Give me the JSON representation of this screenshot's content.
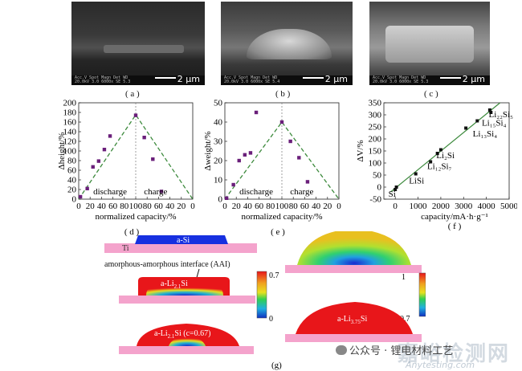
{
  "sem_panels": [
    {
      "caption": "( a )",
      "scale_label": "2 μm",
      "info_line1": "Acc.V  Spot Magn   Det  WD",
      "info_line2": "20.0kV 3.0  6000x  SE  5.3"
    },
    {
      "caption": "( b )",
      "scale_label": "2 μm",
      "info_line1": "Acc.V  Spot Magn   Det  WD",
      "info_line2": "20.0kV 3.0  6000x  SE  5.4"
    },
    {
      "caption": "( c )",
      "scale_label": "2 μm",
      "info_line1": "Acc.V  Spot Magn   Det  WD",
      "info_line2": "20.0kV 3.0  6000x  SE  5.3"
    }
  ],
  "chart_data": [
    {
      "type": "scatter",
      "caption": "( d )",
      "ylabel": "Δheight/%",
      "xlabel": "normalized capacity/%",
      "x_ticks": [
        "0",
        "20",
        "40",
        "60",
        "80",
        "100",
        "80",
        "60",
        "40",
        "20",
        "0"
      ],
      "y_ticks": [
        "0",
        "20",
        "40",
        "60",
        "80",
        "100",
        "120",
        "140",
        "160",
        "180",
        "200"
      ],
      "ylim": [
        0,
        200
      ],
      "annotations": [
        "discharge",
        "charge"
      ],
      "points": [
        [
          3,
          5
        ],
        [
          15,
          22
        ],
        [
          25,
          67
        ],
        [
          35,
          79
        ],
        [
          45,
          103
        ],
        [
          55,
          131
        ],
        [
          100,
          174
        ],
        [
          115,
          128
        ],
        [
          130,
          83
        ],
        [
          145,
          16
        ]
      ],
      "trend": [
        [
          0,
          0
        ],
        [
          100,
          175
        ],
        [
          200,
          0
        ]
      ]
    },
    {
      "type": "scatter",
      "caption": "( e )",
      "ylabel": "Δweight/%",
      "xlabel": "normalized capacity/%",
      "x_ticks": [
        "0",
        "20",
        "40",
        "60",
        "80",
        "100",
        "80",
        "60",
        "40",
        "20",
        "0"
      ],
      "y_ticks": [
        "0",
        "10",
        "20",
        "30",
        "40",
        "50"
      ],
      "ylim": [
        0,
        50
      ],
      "annotations": [
        "discharge",
        "charge"
      ],
      "points": [
        [
          3,
          0.5
        ],
        [
          15,
          7.5
        ],
        [
          25,
          20
        ],
        [
          35,
          23
        ],
        [
          45,
          24
        ],
        [
          55,
          45
        ],
        [
          100,
          40
        ],
        [
          115,
          30
        ],
        [
          130,
          21.5
        ],
        [
          145,
          9
        ]
      ],
      "trend": [
        [
          0,
          0
        ],
        [
          100,
          40
        ],
        [
          200,
          0
        ]
      ]
    },
    {
      "type": "scatter",
      "caption": "( f )",
      "ylabel": "ΔV/%",
      "xlabel": "capacity/mA·h·g⁻¹",
      "x_ticks": [
        "0",
        "1000",
        "2000",
        "3000",
        "4000",
        "5000"
      ],
      "y_ticks": [
        "-50",
        "0",
        "50",
        "100",
        "150",
        "200",
        "250",
        "300",
        "350"
      ],
      "xlim": [
        -500,
        5000
      ],
      "ylim": [
        -50,
        350
      ],
      "points": [
        [
          0,
          -10
        ],
        [
          50,
          0
        ],
        [
          900,
          55
        ],
        [
          1550,
          105
        ],
        [
          1850,
          140
        ],
        [
          2000,
          155
        ],
        [
          3100,
          245
        ],
        [
          3600,
          275
        ],
        [
          4200,
          310
        ],
        [
          4150,
          320
        ]
      ],
      "trend": [
        [
          -200,
          -20
        ],
        [
          4600,
          350
        ]
      ],
      "labels": [
        {
          "text": "Si",
          "x": -300,
          "y": -40
        },
        {
          "text": "LiSi",
          "x": 600,
          "y": 15
        },
        {
          "text": "Li₁₂Si₇",
          "x": 1400,
          "y": 75
        },
        {
          "text": "Li₂Si",
          "x": 1800,
          "y": 120
        },
        {
          "text": "Li₁₃Si₄",
          "x": 3400,
          "y": 210
        },
        {
          "text": "Li₁₅Si₄",
          "x": 3800,
          "y": 255
        },
        {
          "text": "Li₂₂Si₅",
          "x": 4100,
          "y": 290
        }
      ]
    }
  ],
  "panel_g": {
    "caption": "(g)",
    "ti_label": "Ti",
    "asi_label": "a-Si",
    "aai_label": "amorphous-amorphous interface (AAI)",
    "lixsi_label": "a-Li",
    "lixsi_sub": "2.1",
    "lixsi_tail": "Si",
    "lic_label": "a-Li",
    "lic_sub": "2.1",
    "lic_tail": "Si (c=0.67)",
    "li375_label": "a-Li",
    "li375_sub": "3.75",
    "li375_tail": "Si",
    "cbar1_max": "0.7",
    "cbar1_min": "0",
    "cbar2_max": "1",
    "cbar2_min": "0.7"
  },
  "watermark": {
    "line1": "嘉峪检测网",
    "line2": "Anytesting.com",
    "wechat": "公众号 · 锂电材料工艺"
  },
  "colors": {
    "substrate": "#f4a3cc",
    "asi": "#1730e0",
    "red": "#e8161a",
    "trend": "#3c8a3c",
    "marker": "#6a1f7a"
  }
}
